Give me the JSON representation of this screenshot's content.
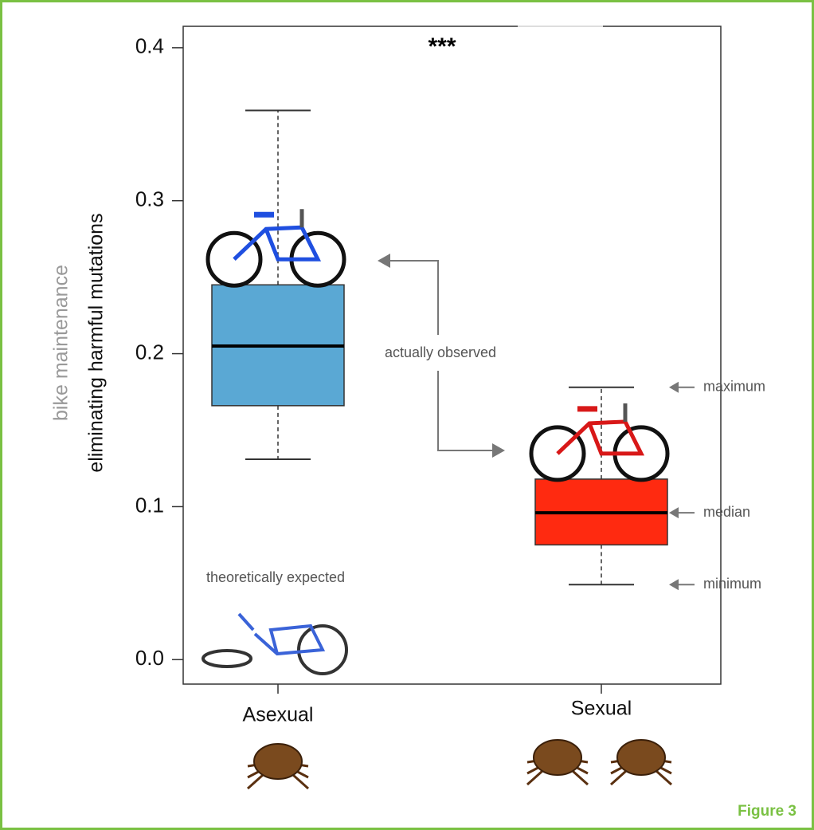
{
  "chart_data": {
    "type": "box",
    "title": "***",
    "y_label_secondary": "bike maintenance",
    "y_label": "eliminating harmful mutations",
    "categories": [
      "Asexual",
      "Sexual"
    ],
    "boxes": [
      {
        "min": 0.131,
        "q1": 0.166,
        "median": 0.205,
        "q3": 0.245,
        "max": 0.359,
        "color": "#5aa8d4"
      },
      {
        "min": 0.049,
        "q1": 0.075,
        "median": 0.096,
        "q3": 0.118,
        "max": 0.178,
        "color": "#ff2a10"
      }
    ],
    "ylim": [
      -0.016,
      0.414
    ],
    "yticks": [
      {
        "value": 0,
        "label": "0.0"
      },
      0.1,
      0.2,
      0.3,
      0.4
    ],
    "annotations": {
      "observed": "actually observed",
      "expected": "theoretically expected",
      "maximum": "maximum",
      "median": "median",
      "minimum": "minimum"
    },
    "figure_label": "Figure 3"
  }
}
